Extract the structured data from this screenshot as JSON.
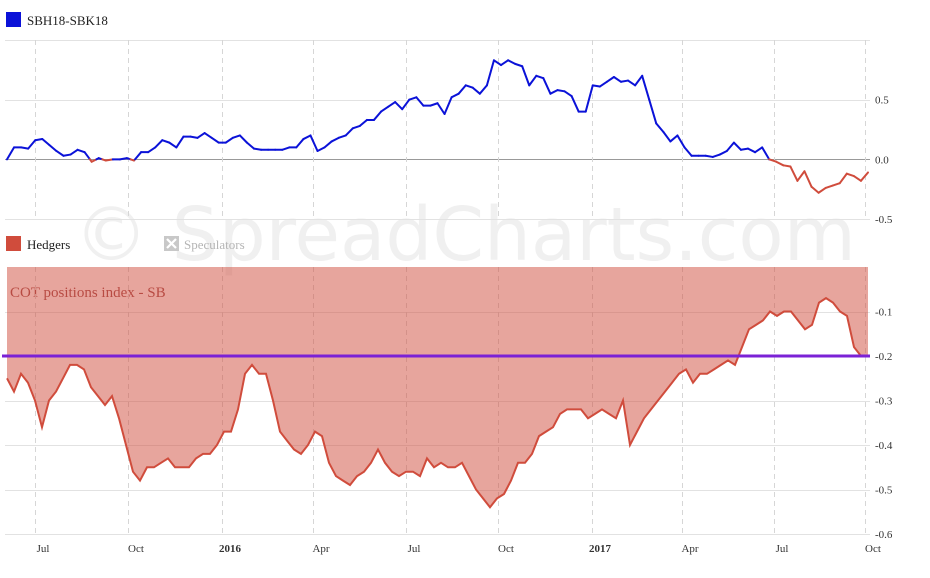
{
  "legend": {
    "spread": "SBH18-SBK18",
    "hedgers": "Hedgers",
    "speculators": "Speculators"
  },
  "watermark": "© SpreadCharts.com",
  "chart_data": [
    {
      "type": "line",
      "name": "SBH18-SBK18",
      "ylim": [
        -0.5,
        1.0
      ],
      "yticks": [
        "0.5",
        "0.0",
        "-0.5"
      ],
      "positive_color": "#0b12d8",
      "negative_color": "#d04c3c",
      "values": [
        0.0,
        0.1,
        0.1,
        0.09,
        0.16,
        0.17,
        0.12,
        0.07,
        0.03,
        0.04,
        0.08,
        0.06,
        -0.02,
        0.01,
        -0.01,
        0.0,
        0.0,
        0.01,
        -0.01,
        0.06,
        0.06,
        0.1,
        0.16,
        0.14,
        0.1,
        0.19,
        0.19,
        0.18,
        0.22,
        0.18,
        0.14,
        0.14,
        0.18,
        0.2,
        0.14,
        0.09,
        0.08,
        0.08,
        0.08,
        0.08,
        0.1,
        0.1,
        0.17,
        0.2,
        0.07,
        0.1,
        0.15,
        0.18,
        0.2,
        0.26,
        0.28,
        0.33,
        0.33,
        0.4,
        0.44,
        0.48,
        0.42,
        0.5,
        0.52,
        0.45,
        0.45,
        0.47,
        0.38,
        0.52,
        0.55,
        0.62,
        0.6,
        0.55,
        0.62,
        0.83,
        0.79,
        0.83,
        0.8,
        0.78,
        0.62,
        0.7,
        0.68,
        0.55,
        0.58,
        0.57,
        0.53,
        0.4,
        0.4,
        0.62,
        0.61,
        0.65,
        0.69,
        0.65,
        0.66,
        0.62,
        0.7,
        0.5,
        0.3,
        0.23,
        0.15,
        0.2,
        0.1,
        0.03,
        0.03,
        0.03,
        0.02,
        0.04,
        0.07,
        0.14,
        0.08,
        0.09,
        0.06,
        0.1,
        0.0,
        -0.02,
        -0.05,
        -0.06,
        -0.18,
        -0.1,
        -0.23,
        -0.28,
        -0.24,
        -0.22,
        -0.2,
        -0.12,
        -0.14,
        -0.18,
        -0.11
      ]
    },
    {
      "type": "area",
      "title": "COT positions index - SB",
      "series": [
        {
          "name": "Hedgers",
          "color": "#d04c3c"
        }
      ],
      "ylim": [
        -0.6,
        0.0
      ],
      "yticks": [
        "-0.1",
        "-0.2",
        "-0.3",
        "-0.4",
        "-0.5",
        "-0.6"
      ],
      "threshold": -0.2,
      "threshold_color": "#7b22d6",
      "values": [
        -0.25,
        -0.28,
        -0.24,
        -0.26,
        -0.3,
        -0.36,
        -0.3,
        -0.28,
        -0.25,
        -0.22,
        -0.22,
        -0.23,
        -0.27,
        -0.29,
        -0.31,
        -0.29,
        -0.34,
        -0.4,
        -0.46,
        -0.48,
        -0.45,
        -0.45,
        -0.44,
        -0.43,
        -0.45,
        -0.45,
        -0.45,
        -0.43,
        -0.42,
        -0.42,
        -0.4,
        -0.37,
        -0.37,
        -0.32,
        -0.24,
        -0.22,
        -0.24,
        -0.24,
        -0.3,
        -0.37,
        -0.39,
        -0.41,
        -0.42,
        -0.4,
        -0.37,
        -0.38,
        -0.44,
        -0.47,
        -0.48,
        -0.49,
        -0.47,
        -0.46,
        -0.44,
        -0.41,
        -0.44,
        -0.46,
        -0.47,
        -0.46,
        -0.46,
        -0.47,
        -0.43,
        -0.45,
        -0.44,
        -0.45,
        -0.45,
        -0.44,
        -0.47,
        -0.5,
        -0.52,
        -0.54,
        -0.52,
        -0.51,
        -0.48,
        -0.44,
        -0.44,
        -0.42,
        -0.38,
        -0.37,
        -0.36,
        -0.33,
        -0.32,
        -0.32,
        -0.32,
        -0.34,
        -0.33,
        -0.32,
        -0.33,
        -0.34,
        -0.3,
        -0.4,
        -0.37,
        -0.34,
        -0.32,
        -0.3,
        -0.28,
        -0.26,
        -0.24,
        -0.23,
        -0.26,
        -0.24,
        -0.24,
        -0.23,
        -0.22,
        -0.21,
        -0.22,
        -0.18,
        -0.14,
        -0.13,
        -0.12,
        -0.1,
        -0.11,
        -0.1,
        -0.1,
        -0.12,
        -0.14,
        -0.13,
        -0.08,
        -0.07,
        -0.08,
        -0.1,
        -0.11,
        -0.18,
        -0.2,
        -0.2
      ]
    }
  ],
  "x_axis": {
    "labels": [
      {
        "text": "Jul",
        "bold": false
      },
      {
        "text": "Oct",
        "bold": false
      },
      {
        "text": "2016",
        "bold": true
      },
      {
        "text": "Apr",
        "bold": false
      },
      {
        "text": "Jul",
        "bold": false
      },
      {
        "text": "Oct",
        "bold": false
      },
      {
        "text": "2017",
        "bold": true
      },
      {
        "text": "Apr",
        "bold": false
      },
      {
        "text": "Jul",
        "bold": false
      },
      {
        "text": "Oct",
        "bold": false
      }
    ]
  }
}
